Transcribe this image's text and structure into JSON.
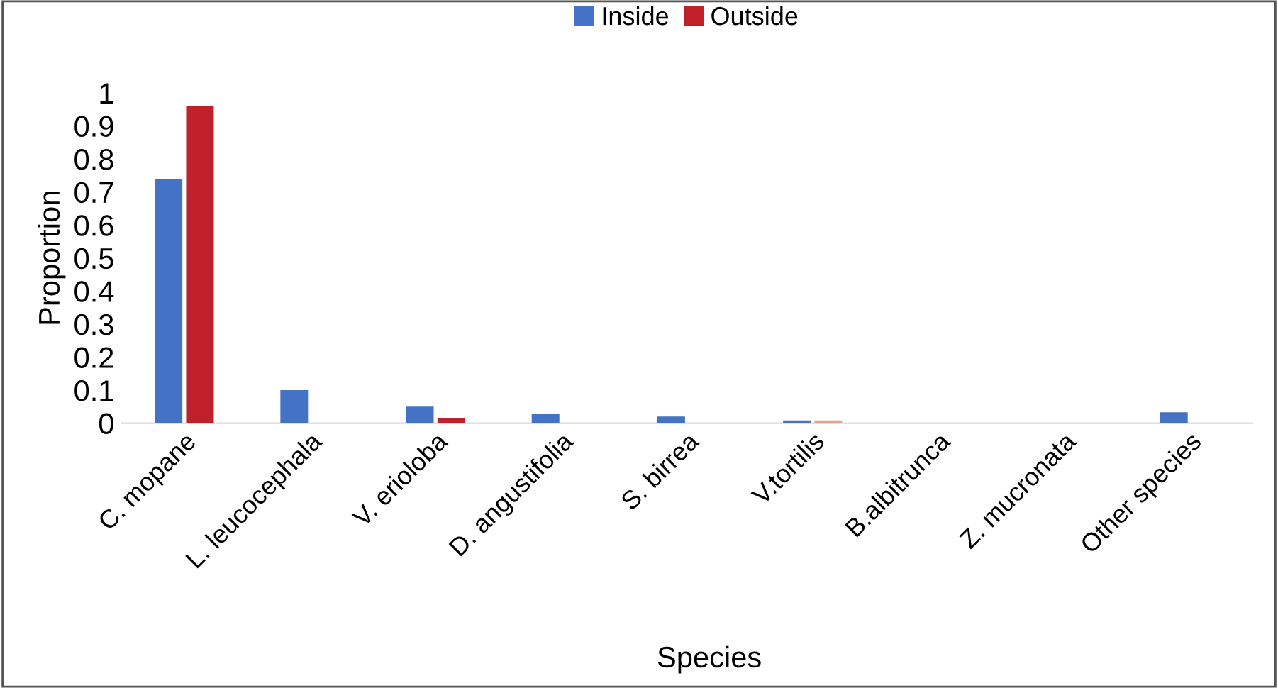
{
  "chart_data": {
    "type": "bar",
    "xlabel": "Species",
    "ylabel": "Proportion",
    "categories": [
      "C. mopane",
      "L. leucocephala",
      "V. erioloba",
      "D. angustifolia",
      "S. birrea",
      "V.tortilis",
      "B.albitrunca",
      "Z. mucronata",
      "Other species"
    ],
    "series": [
      {
        "name": "Inside",
        "color": "#4472c4",
        "values": [
          0.74,
          0.1,
          0.05,
          0.028,
          0.02,
          0.008,
          0,
          0,
          0.033
        ]
      },
      {
        "name": "Outside",
        "color": "#c0202a",
        "colors": [
          "#c0202a",
          "#c0202a",
          "#c0202a",
          "#c0202a",
          "#c0202a",
          "#e8a090",
          "#c0202a",
          "#c0202a",
          "#c0202a"
        ],
        "values": [
          0.96,
          0,
          0.015,
          0,
          0,
          0.008,
          0,
          0,
          0
        ]
      }
    ],
    "ylim": [
      0,
      1
    ],
    "yticks": [
      0,
      0.1,
      0.2,
      0.3,
      0.4,
      0.5,
      0.6,
      0.7,
      0.8,
      0.9,
      1
    ],
    "grid": false,
    "legend": "top"
  }
}
